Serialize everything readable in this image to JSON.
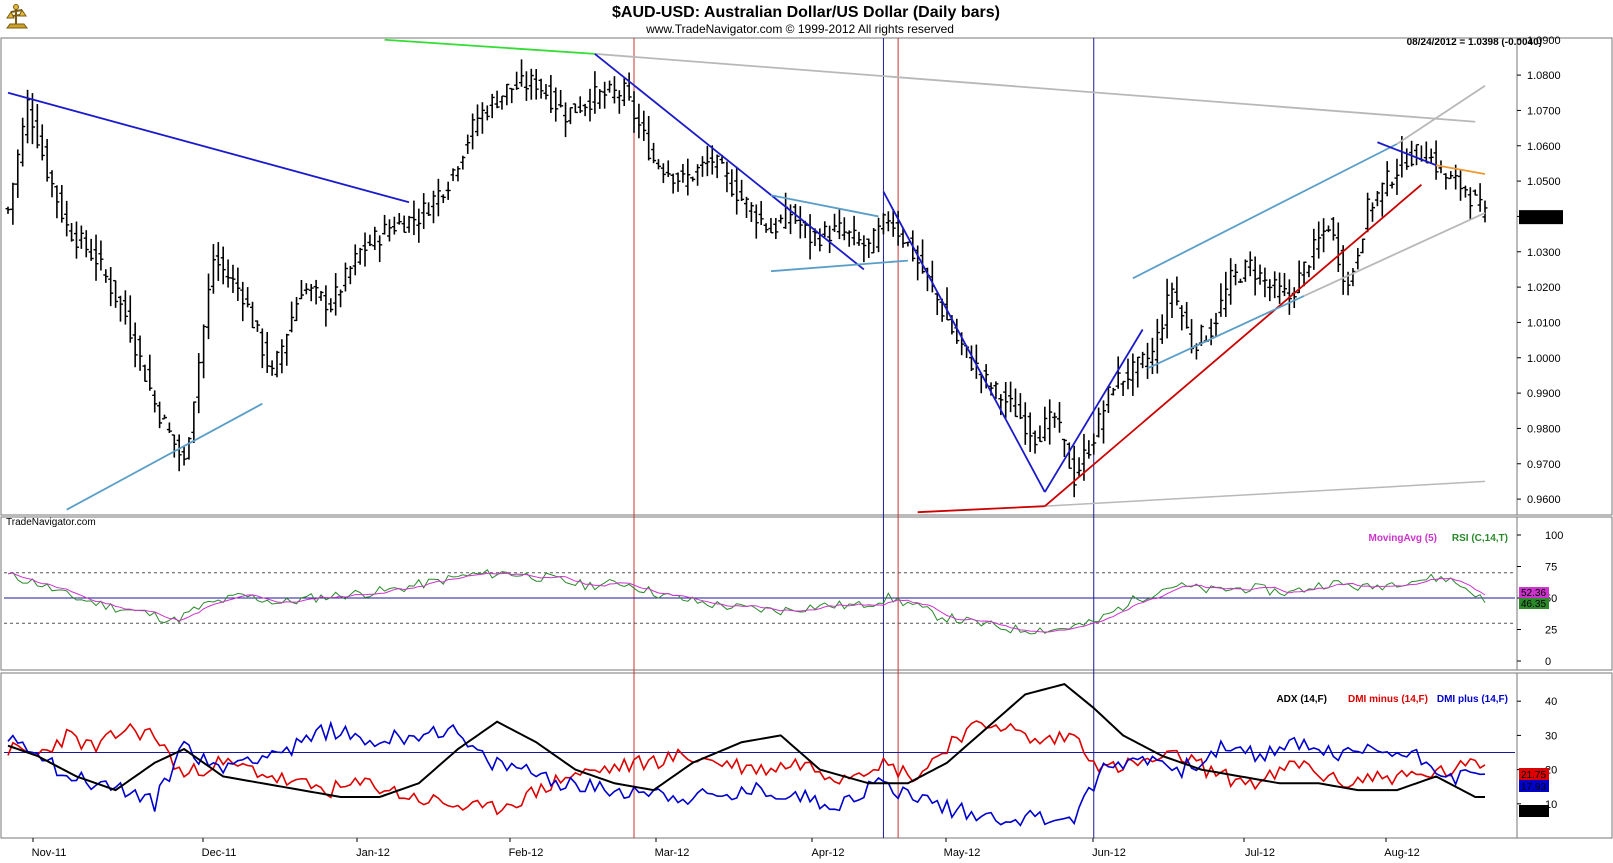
{
  "header": {
    "title": "$AUD-USD:  Australian Dollar/US Dollar  (Daily bars)",
    "subtitle": "www.TradeNavigator.com © 1999-2012 All rights reserved",
    "quote": "08/24/2012 = 1.0398 (-0.0040)",
    "watermark": "TradeNavigator.com"
  },
  "chart_data": [
    {
      "type": "ohlc",
      "panel": "price",
      "y_axis_ticks": [
        "1.0900",
        "1.0800",
        "1.0700",
        "1.0600",
        "1.0500",
        "1.0400",
        "1.0300",
        "1.0200",
        "1.0100",
        "1.0000",
        "0.9900",
        "0.9800",
        "0.9700",
        "0.9600"
      ],
      "ylim": [
        0.9555,
        1.0905
      ],
      "last_value": "1.0398",
      "x_ticks": [
        "Nov-11",
        "Dec-11",
        "Jan-12",
        "Feb-12",
        "Mar-12",
        "Apr-12",
        "May-12",
        "Jun-12",
        "Jul-12",
        "Aug-12"
      ],
      "closes_anchor": [
        [
          0,
          1.042
        ],
        [
          4,
          1.072
        ],
        [
          8,
          1.053
        ],
        [
          12,
          1.037
        ],
        [
          18,
          1.028
        ],
        [
          24,
          1.012
        ],
        [
          30,
          0.987
        ],
        [
          36,
          0.97
        ],
        [
          42,
          1.028
        ],
        [
          48,
          1.018
        ],
        [
          54,
          0.995
        ],
        [
          60,
          1.02
        ],
        [
          66,
          1.015
        ],
        [
          72,
          1.03
        ],
        [
          78,
          1.037
        ],
        [
          84,
          1.04
        ],
        [
          90,
          1.05
        ],
        [
          96,
          1.068
        ],
        [
          102,
          1.076
        ],
        [
          108,
          1.078
        ],
        [
          114,
          1.069
        ],
        [
          120,
          1.074
        ],
        [
          126,
          1.075
        ],
        [
          132,
          1.056
        ],
        [
          138,
          1.05
        ],
        [
          144,
          1.056
        ],
        [
          150,
          1.045
        ],
        [
          156,
          1.036
        ],
        [
          160,
          1.041
        ],
        [
          164,
          1.034
        ],
        [
          170,
          1.036
        ],
        [
          176,
          1.031
        ],
        [
          180,
          1.04
        ],
        [
          184,
          1.032
        ],
        [
          188,
          1.022
        ],
        [
          194,
          1.005
        ],
        [
          200,
          0.993
        ],
        [
          206,
          0.985
        ],
        [
          210,
          0.978
        ],
        [
          214,
          0.983
        ],
        [
          218,
          0.966
        ],
        [
          222,
          0.978
        ],
        [
          226,
          0.993
        ],
        [
          230,
          0.996
        ],
        [
          234,
          1.001
        ],
        [
          238,
          1.02
        ],
        [
          242,
          1.004
        ],
        [
          246,
          1.008
        ],
        [
          250,
          1.022
        ],
        [
          254,
          1.026
        ],
        [
          258,
          1.02
        ],
        [
          262,
          1.017
        ],
        [
          266,
          1.028
        ],
        [
          270,
          1.038
        ],
        [
          274,
          1.02
        ],
        [
          278,
          1.042
        ],
        [
          282,
          1.05
        ],
        [
          286,
          1.057
        ],
        [
          290,
          1.058
        ],
        [
          294,
          1.051
        ],
        [
          298,
          1.048
        ],
        [
          302,
          1.0398
        ]
      ]
    },
    {
      "type": "line",
      "panel": "rsi",
      "legend": [
        {
          "name": "MovingAvg (5)",
          "color": "#cc33cc"
        },
        {
          "name": "RSI (C,14,T)",
          "color": "#2a8a2a"
        }
      ],
      "y_axis_ticks": [
        "100",
        "75",
        "50",
        "25",
        "0"
      ],
      "ylim": [
        0,
        100
      ],
      "dashed_levels": [
        70,
        30
      ],
      "solid_level": 50,
      "last_values": {
        "ma": "52.36",
        "rsi": "46.35"
      },
      "rsi_anchor": [
        [
          0,
          68
        ],
        [
          6,
          62
        ],
        [
          12,
          52
        ],
        [
          20,
          44
        ],
        [
          28,
          38
        ],
        [
          34,
          32
        ],
        [
          40,
          44
        ],
        [
          48,
          52
        ],
        [
          56,
          46
        ],
        [
          62,
          50
        ],
        [
          70,
          53
        ],
        [
          78,
          56
        ],
        [
          86,
          62
        ],
        [
          94,
          68
        ],
        [
          102,
          70
        ],
        [
          110,
          66
        ],
        [
          118,
          60
        ],
        [
          126,
          62
        ],
        [
          134,
          52
        ],
        [
          142,
          46
        ],
        [
          150,
          42
        ],
        [
          158,
          40
        ],
        [
          166,
          44
        ],
        [
          174,
          44
        ],
        [
          180,
          50
        ],
        [
          184,
          46
        ],
        [
          190,
          36
        ],
        [
          198,
          30
        ],
        [
          206,
          25
        ],
        [
          214,
          25
        ],
        [
          222,
          30
        ],
        [
          230,
          48
        ],
        [
          238,
          60
        ],
        [
          246,
          56
        ],
        [
          254,
          58
        ],
        [
          262,
          54
        ],
        [
          270,
          62
        ],
        [
          278,
          58
        ],
        [
          286,
          64
        ],
        [
          294,
          66
        ],
        [
          300,
          54
        ],
        [
          302,
          46
        ]
      ]
    },
    {
      "type": "line",
      "panel": "dmi",
      "legend": [
        {
          "name": "ADX (14,F)",
          "color": "#000000"
        },
        {
          "name": "DMI minus (14,F)",
          "color": "#dd0000"
        },
        {
          "name": "DMI plus (14,F)",
          "color": "#0000cc"
        }
      ],
      "y_axis_ticks": [
        "40",
        "30",
        "20",
        "10"
      ],
      "ylim": [
        0,
        50
      ],
      "solid_level": 25,
      "last_values": {
        "dmi_minus": "21.75",
        "dmi_plus": "17.93",
        "adx": "12.08"
      },
      "adx_anchor": [
        [
          0,
          27
        ],
        [
          6,
          24
        ],
        [
          14,
          18
        ],
        [
          22,
          14
        ],
        [
          30,
          22
        ],
        [
          36,
          26
        ],
        [
          44,
          18
        ],
        [
          52,
          16
        ],
        [
          60,
          14
        ],
        [
          68,
          12
        ],
        [
          76,
          12
        ],
        [
          84,
          16
        ],
        [
          92,
          26
        ],
        [
          100,
          34
        ],
        [
          108,
          28
        ],
        [
          116,
          20
        ],
        [
          124,
          16
        ],
        [
          132,
          14
        ],
        [
          140,
          22
        ],
        [
          150,
          28
        ],
        [
          158,
          30
        ],
        [
          166,
          20
        ],
        [
          176,
          16
        ],
        [
          184,
          16
        ],
        [
          192,
          22
        ],
        [
          200,
          32
        ],
        [
          208,
          42
        ],
        [
          216,
          45
        ],
        [
          222,
          38
        ],
        [
          228,
          30
        ],
        [
          236,
          24
        ],
        [
          244,
          20
        ],
        [
          252,
          18
        ],
        [
          260,
          16
        ],
        [
          268,
          16
        ],
        [
          276,
          14
        ],
        [
          284,
          14
        ],
        [
          292,
          18
        ],
        [
          300,
          12
        ],
        [
          302,
          12
        ]
      ],
      "dmi_minus_anchor": [
        [
          0,
          26
        ],
        [
          6,
          24
        ],
        [
          12,
          30
        ],
        [
          18,
          26
        ],
        [
          24,
          32
        ],
        [
          30,
          30
        ],
        [
          36,
          18
        ],
        [
          42,
          22
        ],
        [
          50,
          20
        ],
        [
          58,
          16
        ],
        [
          66,
          14
        ],
        [
          74,
          16
        ],
        [
          82,
          12
        ],
        [
          90,
          10
        ],
        [
          98,
          8
        ],
        [
          106,
          12
        ],
        [
          114,
          18
        ],
        [
          122,
          20
        ],
        [
          130,
          22
        ],
        [
          138,
          24
        ],
        [
          146,
          22
        ],
        [
          154,
          20
        ],
        [
          162,
          22
        ],
        [
          170,
          18
        ],
        [
          178,
          22
        ],
        [
          186,
          18
        ],
        [
          194,
          30
        ],
        [
          202,
          34
        ],
        [
          210,
          28
        ],
        [
          218,
          30
        ],
        [
          224,
          20
        ],
        [
          232,
          22
        ],
        [
          240,
          24
        ],
        [
          248,
          18
        ],
        [
          256,
          16
        ],
        [
          264,
          22
        ],
        [
          272,
          16
        ],
        [
          280,
          18
        ],
        [
          288,
          18
        ],
        [
          296,
          20
        ],
        [
          302,
          22
        ]
      ],
      "dmi_plus_anchor": [
        [
          0,
          30
        ],
        [
          6,
          26
        ],
        [
          12,
          18
        ],
        [
          18,
          16
        ],
        [
          24,
          14
        ],
        [
          30,
          10
        ],
        [
          36,
          28
        ],
        [
          42,
          20
        ],
        [
          50,
          24
        ],
        [
          58,
          26
        ],
        [
          66,
          32
        ],
        [
          74,
          28
        ],
        [
          82,
          30
        ],
        [
          90,
          32
        ],
        [
          98,
          22
        ],
        [
          106,
          20
        ],
        [
          114,
          16
        ],
        [
          122,
          14
        ],
        [
          130,
          14
        ],
        [
          138,
          12
        ],
        [
          146,
          12
        ],
        [
          154,
          14
        ],
        [
          162,
          12
        ],
        [
          170,
          10
        ],
        [
          178,
          16
        ],
        [
          186,
          12
        ],
        [
          194,
          8
        ],
        [
          202,
          6
        ],
        [
          210,
          6
        ],
        [
          218,
          6
        ],
        [
          224,
          20
        ],
        [
          232,
          24
        ],
        [
          240,
          20
        ],
        [
          248,
          26
        ],
        [
          256,
          24
        ],
        [
          264,
          28
        ],
        [
          272,
          24
        ],
        [
          280,
          26
        ],
        [
          288,
          24
        ],
        [
          296,
          18
        ],
        [
          302,
          18
        ]
      ]
    }
  ]
}
